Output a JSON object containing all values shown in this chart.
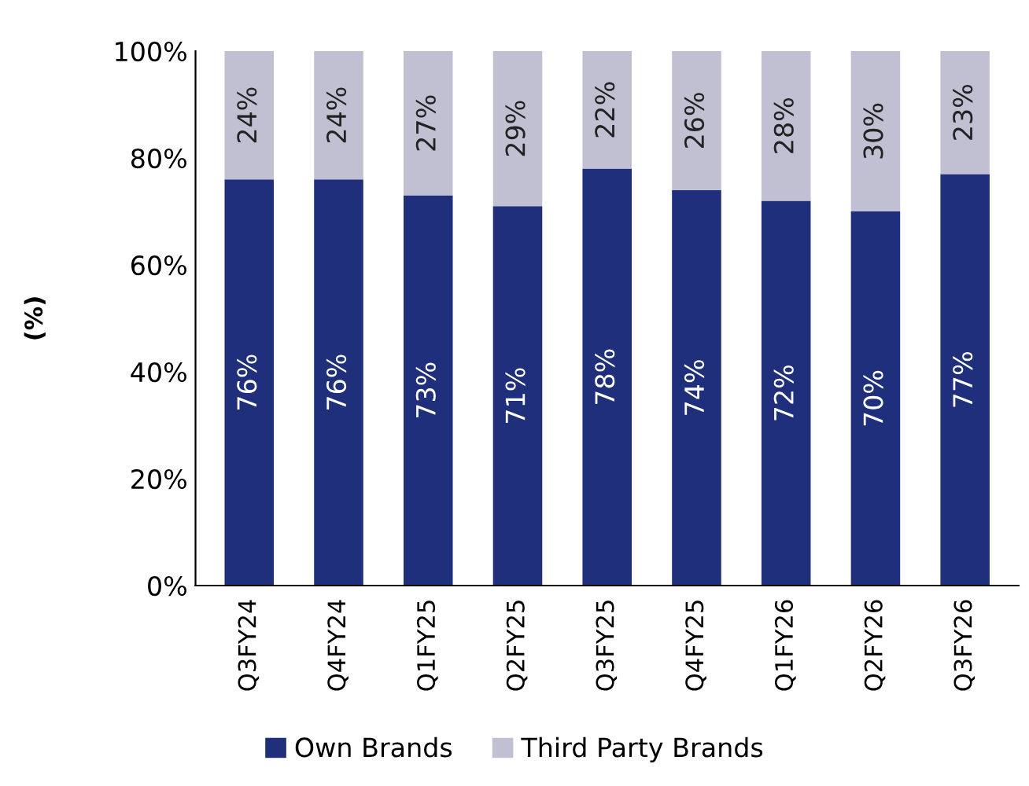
{
  "chart_data": {
    "type": "bar",
    "stacked": true,
    "ylabel": "(%)",
    "categories": [
      "Q3FY24",
      "Q4FY24",
      "Q1FY25",
      "Q2FY25",
      "Q3FY25",
      "Q4FY25",
      "Q1FY26",
      "Q2FY26",
      "Q3FY26"
    ],
    "series": [
      {
        "name": "Own Brands",
        "color": "#1f2f7b",
        "values": [
          76,
          76,
          73,
          71,
          78,
          74,
          72,
          70,
          77
        ],
        "value_labels": [
          "76%",
          "76%",
          "73%",
          "71%",
          "78%",
          "74%",
          "72%",
          "70%",
          "77%"
        ]
      },
      {
        "name": "Third Party Brands",
        "color": "#c1c0d2",
        "values": [
          24,
          24,
          27,
          29,
          22,
          26,
          28,
          30,
          23
        ],
        "value_labels": [
          "24%",
          "24%",
          "27%",
          "29%",
          "22%",
          "26%",
          "28%",
          "30%",
          "23%"
        ]
      }
    ],
    "ylim": [
      0,
      100
    ],
    "yticks": [
      {
        "value": 0,
        "label": "0%"
      },
      {
        "value": 20,
        "label": "20%"
      },
      {
        "value": 40,
        "label": "40%"
      },
      {
        "value": 60,
        "label": "60%"
      },
      {
        "value": 80,
        "label": "80%"
      },
      {
        "value": 100,
        "label": "100%"
      }
    ],
    "grid": false,
    "legend": "bottom"
  }
}
